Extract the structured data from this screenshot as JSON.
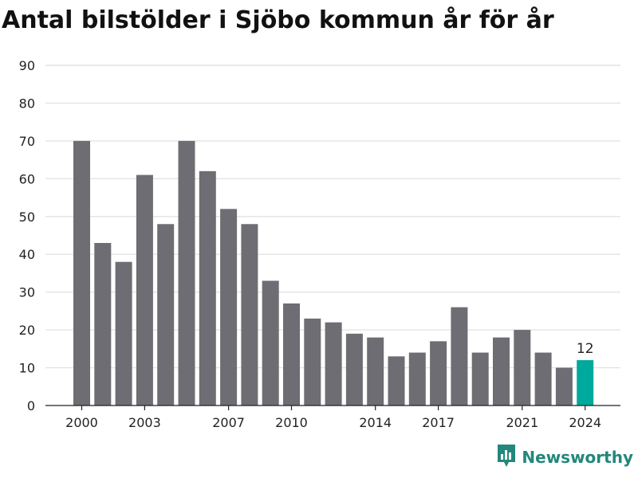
{
  "title": "Antal bilstölder i Sjöbo kommun år för år",
  "brand": {
    "name": "Newsworthy",
    "color": "#23877b",
    "icon": "bar-chart-pin-icon"
  },
  "colors": {
    "bar": "#6e6d73",
    "highlight": "#00a99d",
    "grid": "#e3e3e3",
    "axis": "#222222"
  },
  "chart_data": {
    "type": "bar",
    "title": "Antal bilstölder i Sjöbo kommun år för år",
    "xlabel": "",
    "ylabel": "",
    "categories": [
      "2000",
      "2001",
      "2002",
      "2003",
      "2004",
      "2005",
      "2006",
      "2007",
      "2008",
      "2009",
      "2010",
      "2011",
      "2012",
      "2013",
      "2014",
      "2015",
      "2016",
      "2017",
      "2018",
      "2019",
      "2020",
      "2021",
      "2022",
      "2023",
      "2024"
    ],
    "values": [
      70,
      43,
      38,
      61,
      48,
      70,
      62,
      52,
      48,
      33,
      27,
      23,
      22,
      19,
      18,
      13,
      14,
      17,
      26,
      14,
      18,
      20,
      14,
      10,
      12
    ],
    "ylim": [
      0,
      90
    ],
    "yticks": [
      0,
      10,
      20,
      30,
      40,
      50,
      60,
      70,
      80,
      90
    ],
    "xtick_labels": [
      "2000",
      "2003",
      "2007",
      "2010",
      "2014",
      "2017",
      "2021",
      "2024"
    ],
    "highlight": {
      "category": "2024",
      "label": "12"
    },
    "grid": "horizontal",
    "legend": "none"
  }
}
